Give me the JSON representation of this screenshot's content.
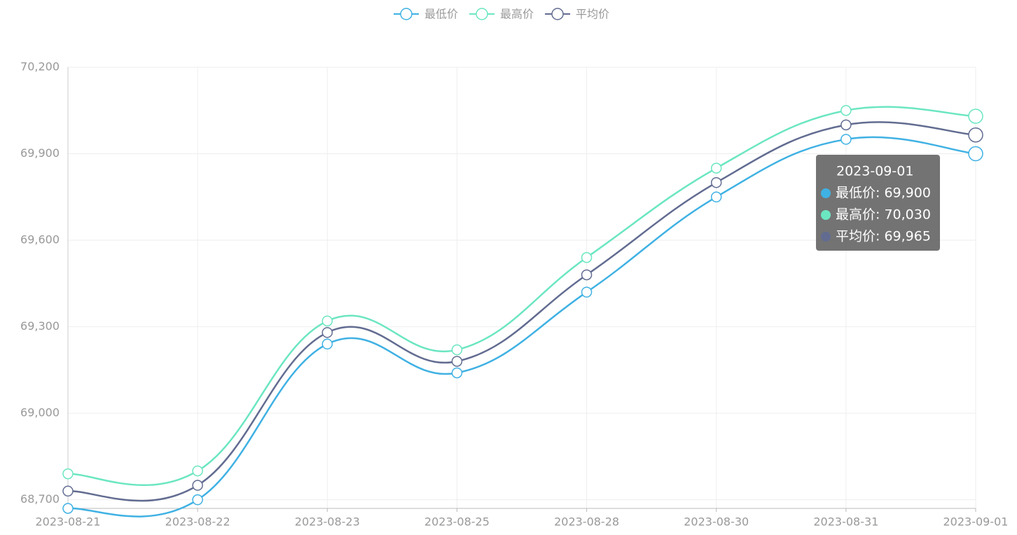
{
  "chart_data": {
    "type": "line",
    "categories": [
      "2023-08-21",
      "2023-08-22",
      "2023-08-23",
      "2023-08-25",
      "2023-08-28",
      "2023-08-30",
      "2023-08-31",
      "2023-09-01"
    ],
    "series": [
      {
        "name": "最低价",
        "color": "#3fb1e3",
        "values": [
          68670,
          68700,
          69240,
          69140,
          69420,
          69750,
          69950,
          69900
        ]
      },
      {
        "name": "最高价",
        "color": "#6be6c1",
        "values": [
          68790,
          68800,
          69320,
          69220,
          69540,
          69850,
          70050,
          70030
        ]
      },
      {
        "name": "平均价",
        "color": "#626c91",
        "values": [
          68730,
          68750,
          69280,
          69180,
          69480,
          69800,
          70000,
          69965
        ]
      }
    ],
    "ylim": [
      68670,
      70200
    ],
    "yticks": [
      {
        "value": 68700,
        "label": "68,700"
      },
      {
        "value": 69000,
        "label": "69,000"
      },
      {
        "value": 69300,
        "label": "69,300"
      },
      {
        "value": 69600,
        "label": "69,600"
      },
      {
        "value": 69900,
        "label": "69,900"
      },
      {
        "value": 70200,
        "label": "70,200"
      }
    ],
    "grid": true,
    "legend": "top",
    "tooltip": {
      "title": "2023-09-01",
      "items": [
        "最低价: 69,900",
        "最高价: 70,030",
        "平均价: 69,965"
      ]
    }
  }
}
